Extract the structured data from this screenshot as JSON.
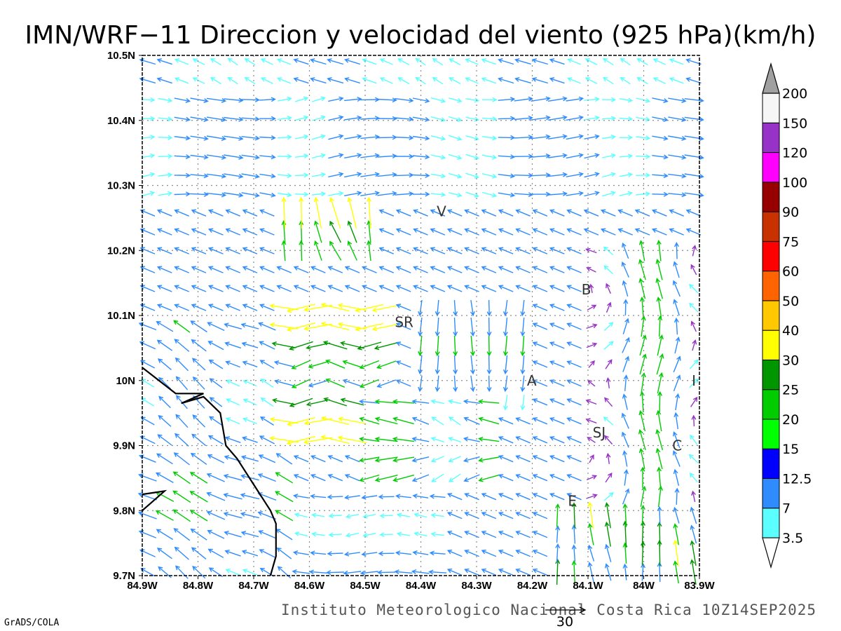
{
  "title": "IMN/WRF−11 Direccion y velocidad del viento (925 hPa)(km/h)",
  "footer": "Instituto Meteorologico Nacional Costa Rica 10Z14SEP2025",
  "software_credit": "GrADS/COLA",
  "reference_vector": {
    "label": "30",
    "value_kmh": 30
  },
  "map": {
    "lon_range": [
      -84.9,
      -83.9
    ],
    "lat_range": [
      9.7,
      10.5
    ],
    "grid": true,
    "x_ticks": [
      "84.9W",
      "84.8W",
      "84.7W",
      "84.6W",
      "84.5W",
      "84.4W",
      "84.3W",
      "84.2W",
      "84.1W",
      "84W",
      "83.9W"
    ],
    "y_ticks": [
      "9.7N",
      "9.8N",
      "9.9N",
      "10N",
      "10.1N",
      "10.2N",
      "10.3N",
      "10.4N",
      "10.5N"
    ],
    "coastline": [
      [
        -84.9,
        10.02
      ],
      [
        -84.84,
        9.98
      ],
      [
        -84.79,
        9.98
      ],
      [
        -84.83,
        9.965
      ],
      [
        -84.79,
        9.975
      ],
      [
        -84.76,
        9.95
      ],
      [
        -84.75,
        9.9
      ],
      [
        -84.73,
        9.88
      ],
      [
        -84.7,
        9.84
      ],
      [
        -84.67,
        9.8
      ],
      [
        -84.66,
        9.78
      ],
      [
        -84.66,
        9.73
      ],
      [
        -84.67,
        9.7
      ]
    ],
    "coast_inlet": [
      [
        -84.9,
        9.8
      ],
      [
        -84.86,
        9.83
      ],
      [
        -84.9,
        9.825
      ]
    ],
    "city_markers": [
      {
        "label": "V",
        "lon": -84.363,
        "lat": 10.26
      },
      {
        "label": "B",
        "lon": -84.103,
        "lat": 10.14
      },
      {
        "label": "SR",
        "lon": -84.43,
        "lat": 10.09
      },
      {
        "label": "A",
        "lon": -84.201,
        "lat": 10.0
      },
      {
        "label": "I",
        "lon": -83.91,
        "lat": 10.0
      },
      {
        "label": "SJ",
        "lon": -84.08,
        "lat": 9.92
      },
      {
        "label": "C",
        "lon": -83.94,
        "lat": 9.9
      },
      {
        "label": "E",
        "lon": -84.128,
        "lat": 9.815
      }
    ]
  },
  "colorbar": {
    "tick_labels": [
      "3.5",
      "7",
      "12.5",
      "15",
      "20",
      "25",
      "30",
      "40",
      "50",
      "60",
      "75",
      "90",
      "100",
      "120",
      "150",
      "200"
    ],
    "colors": [
      "#5bffff",
      "#2e8cff",
      "#0000ff",
      "#00ff00",
      "#00cc00",
      "#009600",
      "#ffff00",
      "#ffc800",
      "#ff6400",
      "#ff0000",
      "#c83200",
      "#960000",
      "#ff00ff",
      "#9632c8",
      "#f6f6f6",
      "#a0a0a0"
    ]
  }
}
